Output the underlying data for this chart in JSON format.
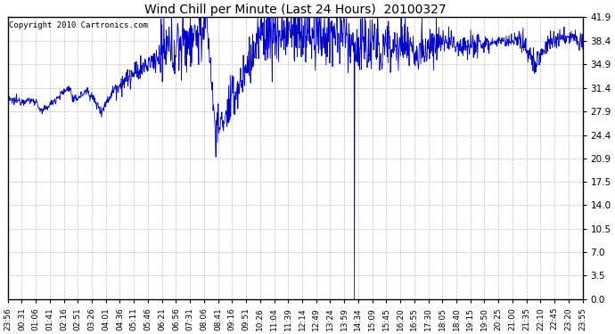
{
  "title": "Wind Chill per Minute (Last 24 Hours)  20100327",
  "copyright": "Copyright 2010 Cartronics.com",
  "line_color": "#0000cc",
  "background_color": "#ffffff",
  "grid_color": "#b0b0b0",
  "yticks": [
    0.0,
    3.5,
    7.0,
    10.5,
    14.0,
    17.5,
    20.9,
    24.4,
    27.9,
    31.4,
    34.9,
    38.4,
    41.9
  ],
  "ylim": [
    0.0,
    41.9
  ],
  "xtick_labels": [
    "23:56",
    "00:31",
    "01:06",
    "01:41",
    "02:16",
    "02:51",
    "03:26",
    "04:01",
    "04:36",
    "05:11",
    "05:46",
    "06:21",
    "06:56",
    "07:31",
    "08:06",
    "08:41",
    "09:16",
    "09:51",
    "10:26",
    "11:04",
    "11:39",
    "12:14",
    "12:49",
    "13:24",
    "13:59",
    "14:34",
    "15:09",
    "15:45",
    "16:20",
    "16:55",
    "17:30",
    "18:05",
    "18:40",
    "19:15",
    "19:50",
    "20:25",
    "21:00",
    "21:35",
    "22:10",
    "22:45",
    "23:20",
    "23:55"
  ],
  "figsize": [
    6.9,
    3.75
  ],
  "dpi": 100
}
